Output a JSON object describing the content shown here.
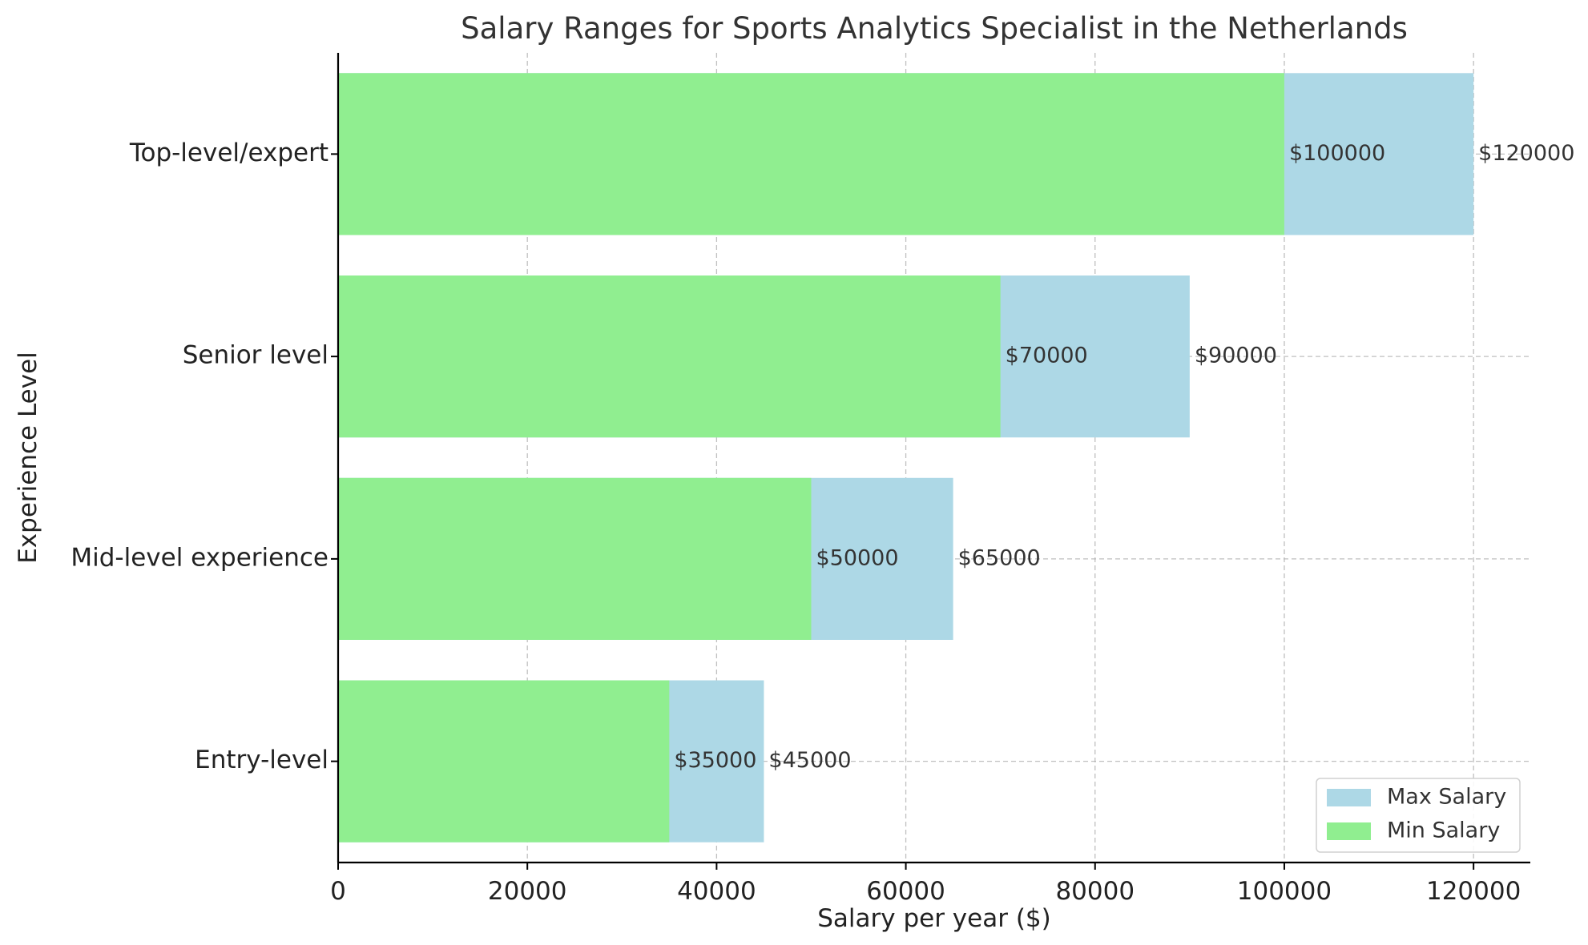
{
  "chart_data": {
    "type": "bar",
    "orientation": "horizontal",
    "title": "Salary Ranges for Sports Analytics Specialist in the Netherlands",
    "xlabel": "Salary per year ($)",
    "ylabel": "Experience Level",
    "categories": [
      "Entry-level",
      "Mid-level experience",
      "Senior level",
      "Top-level/expert"
    ],
    "series": [
      {
        "name": "Max Salary",
        "color": "#add8e6",
        "values": [
          45000,
          65000,
          90000,
          120000
        ],
        "labels": [
          "$45000",
          "$65000",
          "$90000",
          "$120000"
        ]
      },
      {
        "name": "Min Salary",
        "color": "#90ee90",
        "values": [
          35000,
          50000,
          70000,
          100000
        ],
        "labels": [
          "$35000",
          "$50000",
          "$70000",
          "$100000"
        ]
      }
    ],
    "xlim": [
      0,
      126000
    ],
    "xticks": [
      0,
      20000,
      40000,
      60000,
      80000,
      100000,
      120000
    ],
    "xtick_labels": [
      "0",
      "20000",
      "40000",
      "60000",
      "80000",
      "100000",
      "120000"
    ],
    "grid": true,
    "legend_position": "bottom-right"
  }
}
